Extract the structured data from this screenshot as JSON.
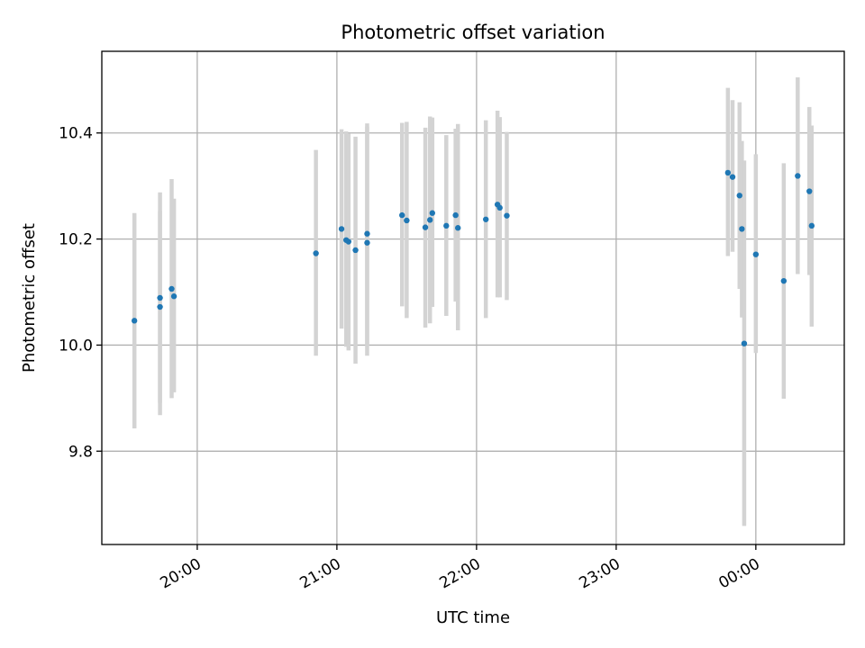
{
  "chart_data": {
    "type": "scatter",
    "title": "Photometric offset variation",
    "xlabel": "UTC time",
    "ylabel": "Photometric offset",
    "xlim": [
      "19:19",
      "00:38"
    ],
    "ylim": [
      9.624,
      10.554
    ],
    "x_ticks": [
      "20:00",
      "21:00",
      "22:00",
      "23:00",
      "00:00"
    ],
    "y_ticks": [
      9.8,
      10.0,
      10.2,
      10.4
    ],
    "grid": true,
    "colors": {
      "point": "#1f77b4",
      "errorbar": "#d3d3d3",
      "grid": "#b0b0b0"
    },
    "points": [
      {
        "t": "19:33",
        "y": 10.046,
        "lo": 9.843,
        "hi": 10.249
      },
      {
        "t": "19:44",
        "y": 10.089,
        "lo": 9.868,
        "hi": 10.288
      },
      {
        "t": "19:44",
        "y": 10.072,
        "lo": 9.891,
        "hi": 10.253
      },
      {
        "t": "19:49",
        "y": 10.106,
        "lo": 9.9,
        "hi": 10.313
      },
      {
        "t": "19:50",
        "y": 10.092,
        "lo": 9.911,
        "hi": 10.276
      },
      {
        "t": "20:51",
        "y": 10.173,
        "lo": 9.98,
        "hi": 10.368
      },
      {
        "t": "21:02",
        "y": 10.219,
        "lo": 10.031,
        "hi": 10.407
      },
      {
        "t": "21:04",
        "y": 10.198,
        "lo": 9.997,
        "hi": 10.403
      },
      {
        "t": "21:05",
        "y": 10.195,
        "lo": 9.99,
        "hi": 10.399
      },
      {
        "t": "21:08",
        "y": 10.179,
        "lo": 9.965,
        "hi": 10.393
      },
      {
        "t": "21:13",
        "y": 10.21,
        "lo": 10.0,
        "hi": 10.418
      },
      {
        "t": "21:13",
        "y": 10.193,
        "lo": 9.98,
        "hi": 10.412
      },
      {
        "t": "21:28",
        "y": 10.245,
        "lo": 10.073,
        "hi": 10.419
      },
      {
        "t": "21:30",
        "y": 10.235,
        "lo": 10.051,
        "hi": 10.421
      },
      {
        "t": "21:38",
        "y": 10.222,
        "lo": 10.033,
        "hi": 10.41
      },
      {
        "t": "21:40",
        "y": 10.236,
        "lo": 10.041,
        "hi": 10.431
      },
      {
        "t": "21:41",
        "y": 10.249,
        "lo": 10.072,
        "hi": 10.429
      },
      {
        "t": "21:47",
        "y": 10.225,
        "lo": 10.055,
        "hi": 10.396
      },
      {
        "t": "21:51",
        "y": 10.245,
        "lo": 10.082,
        "hi": 10.408
      },
      {
        "t": "21:52",
        "y": 10.221,
        "lo": 10.028,
        "hi": 10.417
      },
      {
        "t": "22:04",
        "y": 10.237,
        "lo": 10.051,
        "hi": 10.424
      },
      {
        "t": "22:09",
        "y": 10.265,
        "lo": 10.09,
        "hi": 10.442
      },
      {
        "t": "22:10",
        "y": 10.259,
        "lo": 10.09,
        "hi": 10.43
      },
      {
        "t": "22:13",
        "y": 10.244,
        "lo": 10.085,
        "hi": 10.402
      },
      {
        "t": "23:48",
        "y": 10.325,
        "lo": 10.168,
        "hi": 10.485
      },
      {
        "t": "23:50",
        "y": 10.317,
        "lo": 10.176,
        "hi": 10.462
      },
      {
        "t": "23:53",
        "y": 10.282,
        "lo": 10.106,
        "hi": 10.458
      },
      {
        "t": "23:54",
        "y": 10.219,
        "lo": 10.052,
        "hi": 10.385
      },
      {
        "t": "23:55",
        "y": 10.003,
        "lo": 9.659,
        "hi": 10.348
      },
      {
        "t": "00:00",
        "y": 10.171,
        "lo": 9.985,
        "hi": 10.36
      },
      {
        "t": "00:12",
        "y": 10.121,
        "lo": 9.899,
        "hi": 10.343
      },
      {
        "t": "00:18",
        "y": 10.319,
        "lo": 10.134,
        "hi": 10.505
      },
      {
        "t": "00:23",
        "y": 10.29,
        "lo": 10.132,
        "hi": 10.449
      },
      {
        "t": "00:24",
        "y": 10.225,
        "lo": 10.035,
        "hi": 10.414
      }
    ]
  }
}
